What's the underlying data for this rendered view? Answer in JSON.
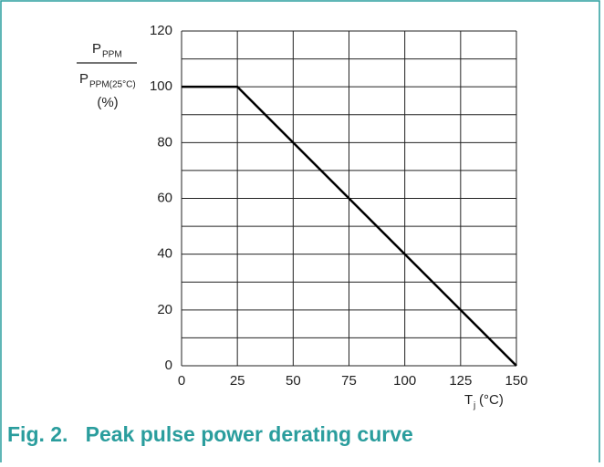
{
  "chart_data": {
    "type": "line",
    "title": "Fig. 2.   Peak pulse power derating curve",
    "y_label": {
      "numerator": "P",
      "numerator_sub": "PPM",
      "denominator": "P",
      "denominator_sub": "PPM(25°C)",
      "unit": "(%)"
    },
    "x_label": {
      "symbol": "T",
      "sub": "j",
      "unit": "(°C)"
    },
    "x": [
      0,
      25,
      150
    ],
    "series": [
      {
        "name": "derating",
        "color": "#000000",
        "values": [
          100,
          100,
          0
        ]
      }
    ],
    "xlim": [
      0,
      150
    ],
    "xticks": [
      0,
      25,
      50,
      75,
      100,
      125,
      150
    ],
    "ylim": [
      0,
      120
    ],
    "yticks": [
      0,
      20,
      40,
      60,
      80,
      100,
      120
    ],
    "ygrid": [
      0,
      10,
      20,
      30,
      40,
      50,
      60,
      70,
      80,
      90,
      100,
      110,
      120
    ],
    "grid": true,
    "frame_color": "#2a9d9d"
  }
}
